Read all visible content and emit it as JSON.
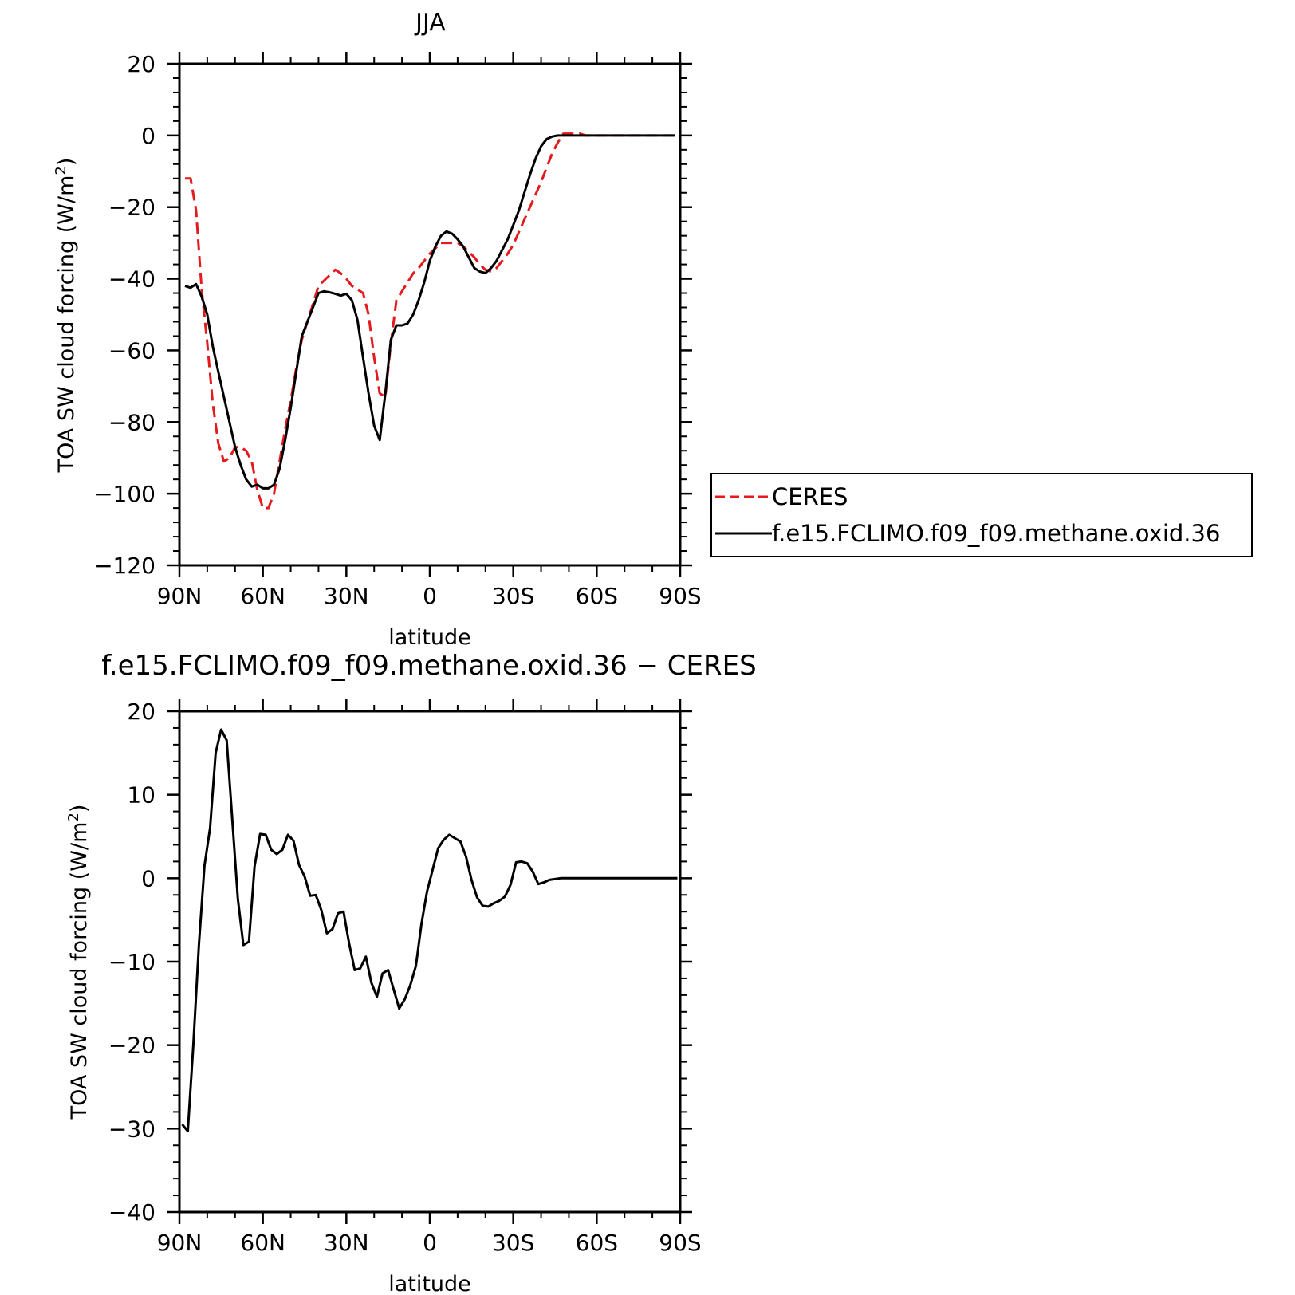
{
  "chart_data": [
    {
      "type": "line",
      "title": "JJA",
      "xlabel": "latitude",
      "ylabel_prefix": "TOA SW cloud forcing (W/m",
      "ylabel_sup": "2",
      "ylabel_suffix": ")",
      "xlim": [
        90,
        -90
      ],
      "ylim": [
        -120,
        20
      ],
      "x_ticks": [
        90,
        60,
        30,
        0,
        -30,
        -60,
        -90
      ],
      "x_tick_labels": [
        "90N",
        "60N",
        "30N",
        "0",
        "30S",
        "60S",
        "90S"
      ],
      "y_ticks": [
        20,
        0,
        -20,
        -40,
        -60,
        -80,
        -100,
        -120
      ],
      "y_tick_labels": [
        "20",
        "0",
        "−20",
        "−40",
        "−60",
        "−80",
        "−100",
        "−120"
      ],
      "legend_placement": "right",
      "series": [
        {
          "name": "CERES",
          "color": "#e41a1c",
          "dash": "dashed",
          "x": [
            88,
            86,
            84,
            82,
            80,
            78,
            76,
            74,
            72,
            70,
            68,
            66,
            64,
            62,
            60,
            58,
            56,
            54,
            52,
            50,
            48,
            46,
            44,
            42,
            40,
            38,
            36,
            34,
            32,
            30,
            28,
            26,
            24,
            22,
            20,
            18,
            16,
            14,
            12,
            10,
            8,
            6,
            4,
            2,
            0,
            -2,
            -4,
            -6,
            -8,
            -10,
            -12,
            -14,
            -16,
            -18,
            -20,
            -22,
            -24,
            -26,
            -28,
            -30,
            -32,
            -34,
            -36,
            -38,
            -40,
            -42,
            -44,
            -46,
            -48,
            -50,
            -52,
            -54,
            -56,
            -58,
            -60,
            -62,
            -64,
            -66,
            -68,
            -70,
            -72,
            -74,
            -76,
            -78,
            -80,
            -82,
            -84,
            -86,
            -88
          ],
          "y": [
            -12,
            -12,
            -21,
            -43,
            -58,
            -75,
            -86,
            -91,
            -90,
            -87,
            -87,
            -88,
            -91,
            -99,
            -104,
            -104,
            -100,
            -91,
            -82,
            -74,
            -65,
            -57,
            -52,
            -47,
            -42,
            -40.5,
            -39,
            -37.5,
            -38.5,
            -40,
            -42,
            -43,
            -44,
            -50,
            -62,
            -72,
            -73,
            -58,
            -46,
            -43.5,
            -41,
            -38.5,
            -37,
            -35,
            -33,
            -31.5,
            -30,
            -30,
            -30,
            -30,
            -31,
            -32.5,
            -34,
            -36,
            -37.5,
            -38,
            -37,
            -35,
            -33,
            -30.5,
            -27,
            -23.5,
            -20,
            -16.5,
            -13,
            -9,
            -5,
            -2,
            0.5,
            0.5,
            0.5,
            0.5,
            0,
            0,
            0,
            0,
            0,
            0,
            0,
            0,
            0,
            0,
            0,
            0,
            0,
            0,
            0,
            0,
            0
          ]
        },
        {
          "name": "f.e15.FCLIMO.f09_f09.methane.oxid.36",
          "color": "#000000",
          "dash": "solid",
          "x": [
            88,
            86,
            84,
            82,
            80,
            78,
            76,
            74,
            72,
            70,
            68,
            66,
            64,
            62,
            60,
            58,
            56,
            54,
            52,
            50,
            48,
            46,
            44,
            42,
            40,
            38,
            36,
            34,
            32,
            30,
            28,
            26,
            24,
            22,
            20,
            18,
            16,
            14,
            12,
            10,
            8,
            6,
            4,
            2,
            0,
            -2,
            -4,
            -6,
            -8,
            -10,
            -12,
            -14,
            -16,
            -18,
            -20,
            -22,
            -24,
            -26,
            -28,
            -30,
            -32,
            -34,
            -36,
            -38,
            -40,
            -42,
            -44,
            -46,
            -48,
            -50,
            -52,
            -54,
            -56,
            -58,
            -60,
            -62,
            -64,
            -66,
            -68,
            -70,
            -72,
            -74,
            -76,
            -78,
            -80,
            -82,
            -84,
            -86,
            -88
          ],
          "y": [
            -42,
            -42.5,
            -41.5,
            -45,
            -50,
            -59,
            -66,
            -73,
            -80,
            -87,
            -92,
            -96,
            -98,
            -97.5,
            -98.5,
            -98.5,
            -97.5,
            -93,
            -85,
            -76,
            -66,
            -56,
            -52,
            -48,
            -44,
            -43.5,
            -43.8,
            -44.2,
            -44.7,
            -44.2,
            -46,
            -51.5,
            -62,
            -72,
            -81,
            -85,
            -72,
            -57,
            -53,
            -53,
            -52.5,
            -50,
            -46,
            -41,
            -35,
            -31,
            -28,
            -26.8,
            -27.4,
            -29,
            -31,
            -34,
            -37,
            -38,
            -38.4,
            -37,
            -35,
            -32,
            -29,
            -25,
            -21,
            -16,
            -11,
            -6.5,
            -3,
            -1,
            -0.3,
            0,
            0,
            0,
            0,
            0,
            0,
            0,
            0,
            0,
            0,
            0,
            0,
            0,
            0,
            0,
            0,
            0,
            0,
            0,
            0,
            0,
            0
          ]
        }
      ]
    },
    {
      "type": "line",
      "title": "f.e15.FCLIMO.f09_f09.methane.oxid.36 − CERES",
      "xlabel": "latitude",
      "ylabel_prefix": "TOA SW cloud forcing (W/m",
      "ylabel_sup": "2",
      "ylabel_suffix": ")",
      "xlim": [
        90,
        -90
      ],
      "ylim": [
        -40,
        20
      ],
      "x_ticks": [
        90,
        60,
        30,
        0,
        -30,
        -60,
        -90
      ],
      "x_tick_labels": [
        "90N",
        "60N",
        "30N",
        "0",
        "30S",
        "60S",
        "90S"
      ],
      "y_ticks": [
        20,
        10,
        0,
        -10,
        -20,
        -30,
        -40
      ],
      "y_tick_labels": [
        "20",
        "10",
        "0",
        "−10",
        "−20",
        "−30",
        "−40"
      ],
      "series": [
        {
          "color": "#000000",
          "dash": "solid",
          "x": [
            89,
            87,
            85,
            83,
            81,
            79,
            77,
            75,
            73,
            71,
            69,
            67,
            65,
            63,
            61,
            59,
            57,
            55,
            53,
            51,
            49,
            47,
            45,
            43,
            41,
            39,
            37,
            35,
            33,
            31,
            29,
            27,
            25,
            23,
            21,
            19,
            17,
            15,
            13,
            11,
            9,
            7,
            5,
            3,
            1,
            -1,
            -3,
            -5,
            -7,
            -9,
            -11,
            -13,
            -15,
            -17,
            -19,
            -21,
            -23,
            -25,
            -27,
            -29,
            -31,
            -33,
            -35,
            -37,
            -39,
            -41,
            -43,
            -45,
            -47,
            -49,
            -51,
            -53,
            -55,
            -57,
            -59,
            -61,
            -63,
            -65,
            -67,
            -69,
            -71,
            -73,
            -75,
            -77,
            -79,
            -81,
            -83,
            -85,
            -87,
            -89
          ],
          "y": [
            -29.5,
            -30.3,
            -20,
            -8,
            1.5,
            6,
            15,
            17.8,
            16.5,
            7,
            -2.5,
            -8,
            -7.6,
            1.4,
            5.3,
            5.2,
            3.4,
            2.9,
            3.4,
            5.2,
            4.5,
            1.6,
            0.2,
            -2.1,
            -2,
            -3.8,
            -6.6,
            -6.1,
            -4.2,
            -4,
            -7.8,
            -11,
            -10.8,
            -9.4,
            -12.5,
            -14.2,
            -11.4,
            -11,
            -13.3,
            -15.6,
            -14.5,
            -12.8,
            -10.5,
            -5.5,
            -1.6,
            1,
            3.6,
            4.6,
            5.2,
            4.8,
            4.4,
            2.6,
            -0.2,
            -2.3,
            -3.3,
            -3.4,
            -3,
            -2.7,
            -2.2,
            -0.8,
            1.9,
            2,
            1.8,
            0.8,
            -0.7,
            -0.5,
            -0.2,
            -0.1,
            0,
            0,
            0,
            0,
            0,
            0,
            0,
            0,
            0,
            0,
            0,
            0,
            0,
            0,
            0,
            0,
            0,
            0,
            0,
            0,
            0,
            0
          ]
        }
      ]
    }
  ]
}
